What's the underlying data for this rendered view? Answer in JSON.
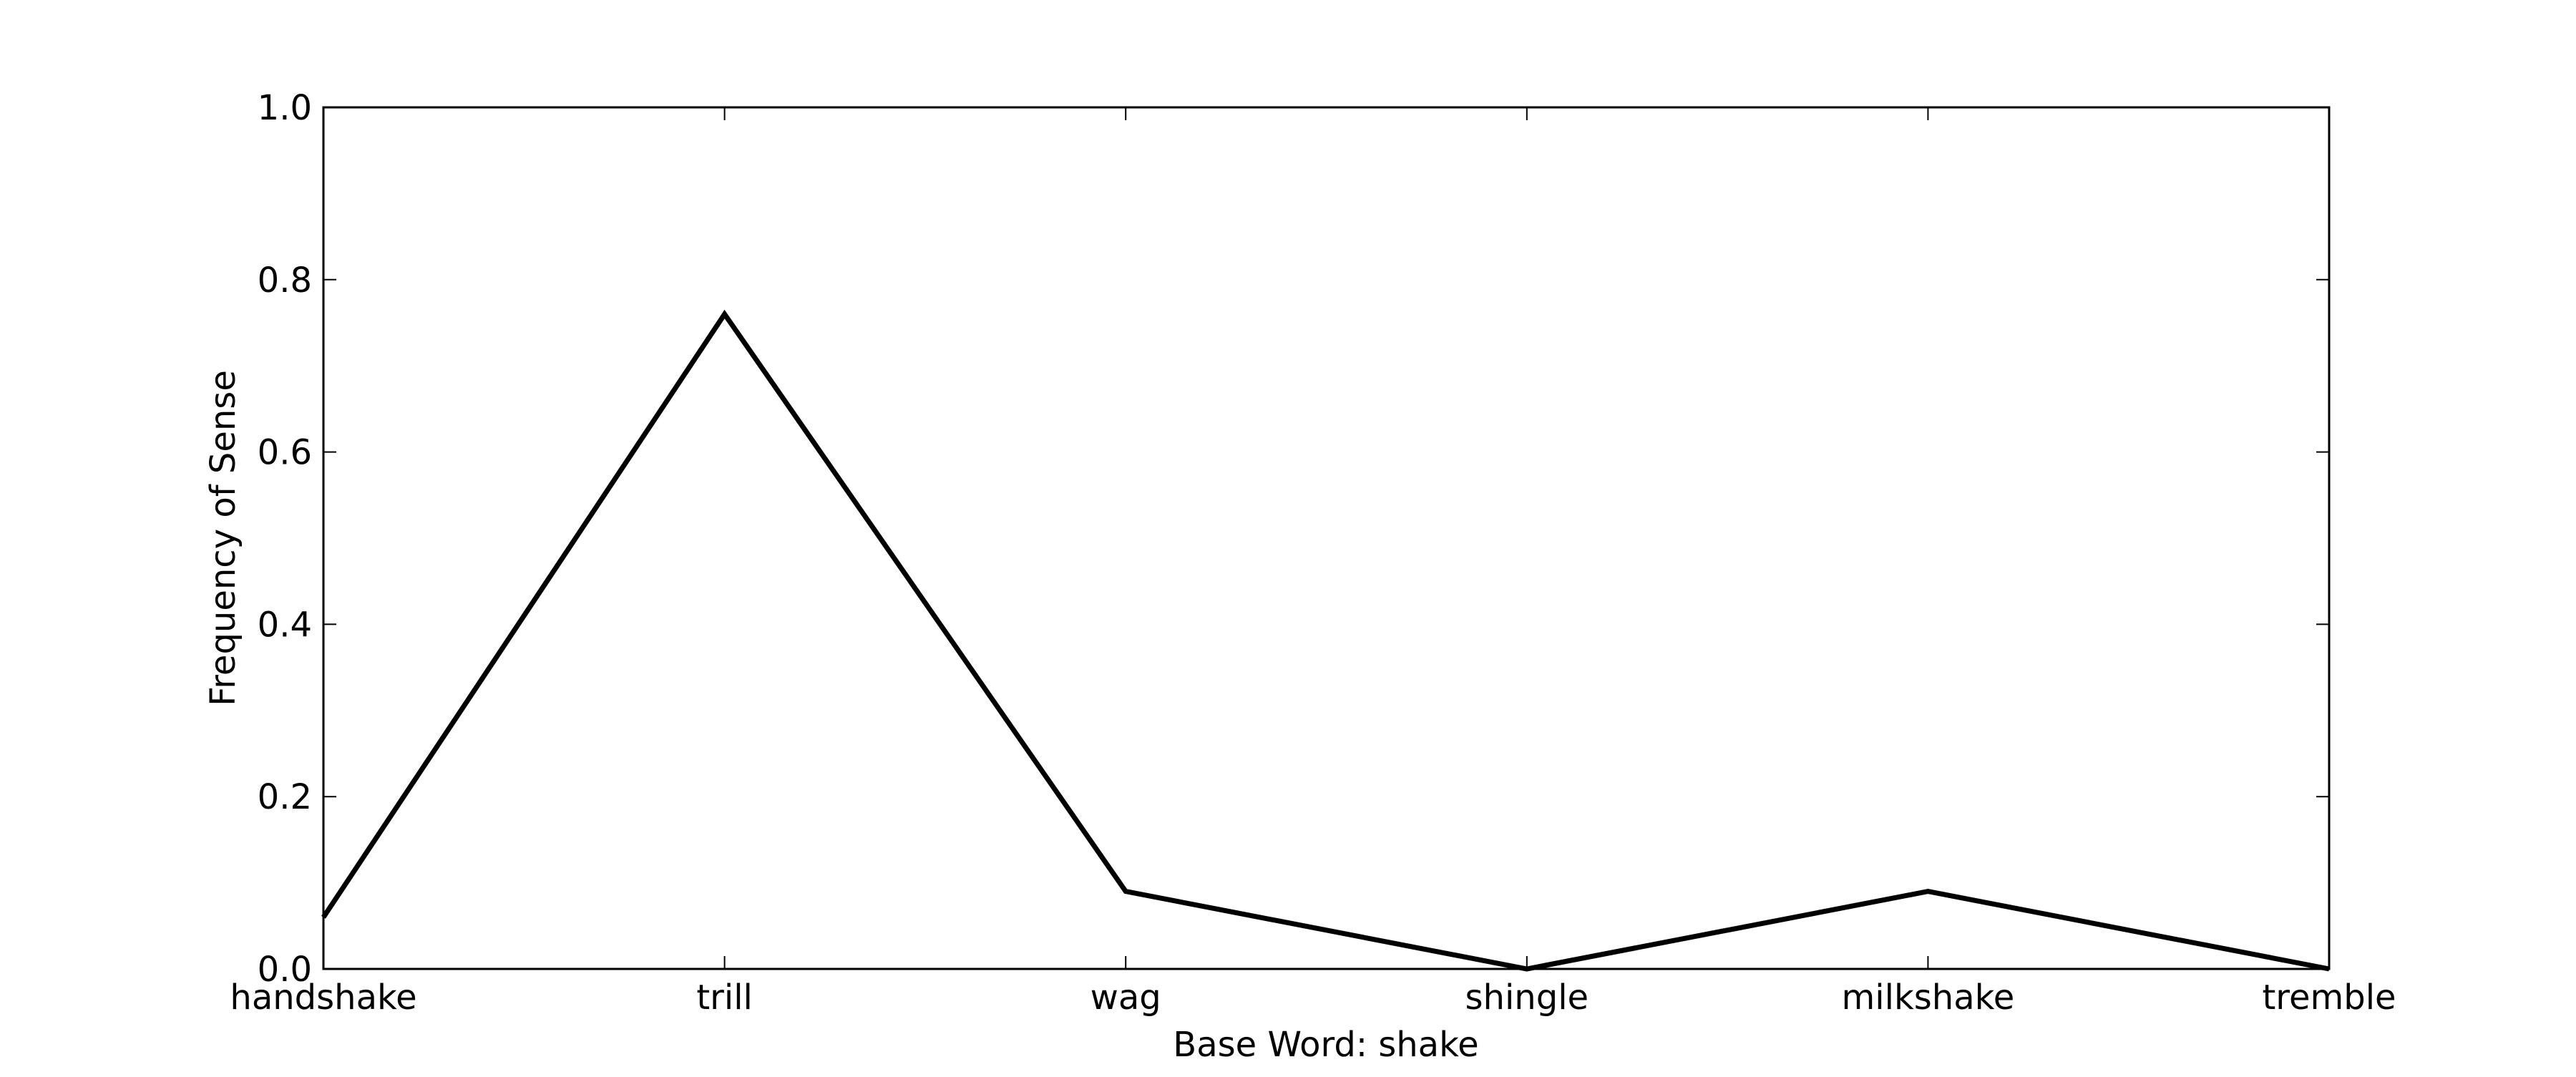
{
  "chart_data": {
    "type": "line",
    "categories": [
      "handshake",
      "trill",
      "wag",
      "shingle",
      "milkshake",
      "tremble"
    ],
    "series": [
      {
        "values": [
          0.06,
          0.76,
          0.09,
          0.0,
          0.09,
          0.0
        ]
      }
    ],
    "xlabel": "Base Word: shake",
    "ylabel": "Frequency of Sense",
    "ylim": [
      0.0,
      1.0
    ],
    "yticks": [
      "0.0",
      "0.2",
      "0.4",
      "0.6",
      "0.8",
      "1.0"
    ],
    "grid": false,
    "line_color": "#000000"
  }
}
